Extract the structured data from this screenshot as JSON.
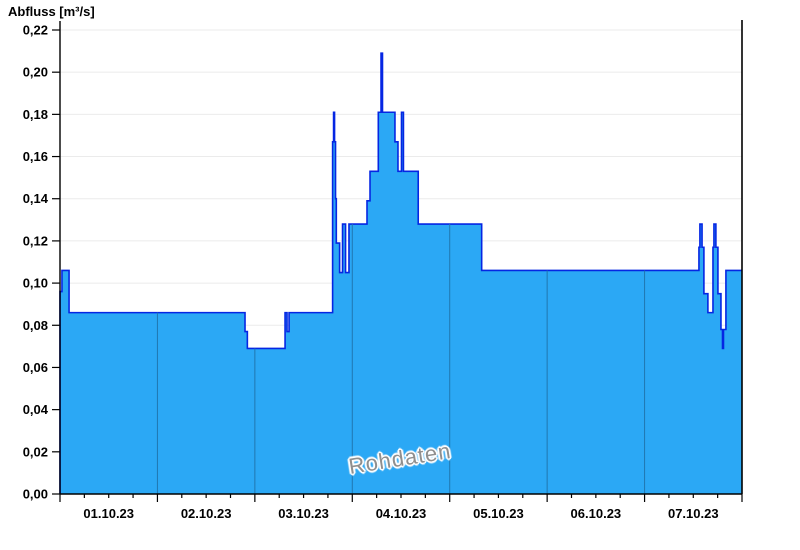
{
  "title": "Abfluss [m³/s]",
  "watermark": "Rohdaten",
  "chart_data": {
    "type": "area",
    "title": "Abfluss [m³/s]",
    "ylabel": "Abfluss [m³/s]",
    "xlabel": "",
    "ylim": [
      0,
      0.22
    ],
    "y_tick_step": 0.02,
    "y_tick_labels": [
      "0,00",
      "0,02",
      "0,04",
      "0,06",
      "0,08",
      "0,10",
      "0,12",
      "0,14",
      "0,16",
      "0,18",
      "0,20",
      "0,22"
    ],
    "x_tick_labels": [
      "01.10.23",
      "02.10.23",
      "03.10.23",
      "04.10.23",
      "05.10.23",
      "06.10.23",
      "07.10.23"
    ],
    "x_range_days": [
      0,
      7
    ],
    "x_minor_tick_hours": 6,
    "grid": "horizontal",
    "legend": null,
    "series": [
      {
        "name": "Rohdaten",
        "unit": "m³/s",
        "step_points_day_value": [
          [
            0.0,
            0.096
          ],
          [
            0.02,
            0.106
          ],
          [
            0.093,
            0.086
          ],
          [
            1.899,
            0.077
          ],
          [
            1.923,
            0.069
          ],
          [
            2.31,
            0.086
          ],
          [
            2.33,
            0.077
          ],
          [
            2.351,
            0.086
          ],
          [
            2.798,
            0.167
          ],
          [
            2.808,
            0.181
          ],
          [
            2.818,
            0.167
          ],
          [
            2.828,
            0.14
          ],
          [
            2.836,
            0.119
          ],
          [
            2.87,
            0.105
          ],
          [
            2.9,
            0.128
          ],
          [
            2.931,
            0.105
          ],
          [
            2.966,
            0.128
          ],
          [
            3.151,
            0.139
          ],
          [
            3.182,
            0.153
          ],
          [
            3.267,
            0.181
          ],
          [
            3.295,
            0.209
          ],
          [
            3.31,
            0.181
          ],
          [
            3.438,
            0.167
          ],
          [
            3.469,
            0.153
          ],
          [
            3.505,
            0.181
          ],
          [
            3.525,
            0.153
          ],
          [
            3.677,
            0.128
          ],
          [
            4.328,
            0.106
          ],
          [
            6.558,
            0.117
          ],
          [
            6.568,
            0.128
          ],
          [
            6.59,
            0.117
          ],
          [
            6.609,
            0.095
          ],
          [
            6.65,
            0.086
          ],
          [
            6.702,
            0.117
          ],
          [
            6.712,
            0.128
          ],
          [
            6.732,
            0.117
          ],
          [
            6.753,
            0.095
          ],
          [
            6.784,
            0.078
          ],
          [
            6.8,
            0.069
          ],
          [
            6.81,
            0.078
          ],
          [
            6.835,
            0.106
          ]
        ]
      }
    ],
    "colors": {
      "fill": "#2BA8F5",
      "stroke": "#0526E3",
      "day_line": "#2077B0",
      "grid": "#EBEBEB",
      "axis": "#000000"
    }
  }
}
